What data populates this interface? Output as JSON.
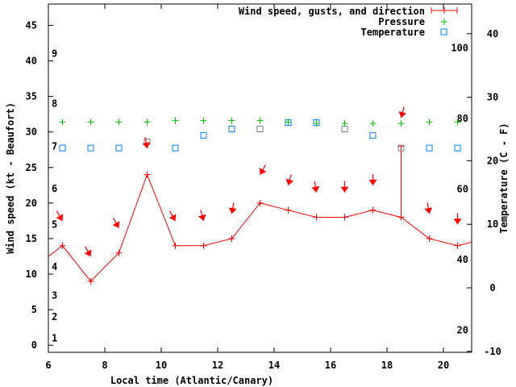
{
  "chart_data": {
    "type": "line",
    "xlabel": "Local time (Atlantic/Canary)",
    "ylabel": "Wind speed (kt - Beaufort)",
    "y2label": "Temperature (C - F)",
    "xlim": [
      6,
      21
    ],
    "ylim": [
      -1,
      48
    ],
    "y2lim": [
      -10,
      45
    ],
    "x_ticks": [
      6,
      8,
      10,
      12,
      14,
      16,
      18,
      20
    ],
    "y_ticks": [
      0,
      5,
      10,
      15,
      20,
      25,
      30,
      35,
      40,
      45
    ],
    "y2_ticks": [
      -10,
      0,
      10,
      20,
      30,
      40
    ],
    "fahrenheit_labels": [
      20,
      40,
      60,
      80,
      100
    ],
    "beaufort_labels": [
      {
        "label": "1",
        "kt": 1
      },
      {
        "label": "2",
        "kt": 4
      },
      {
        "label": "3",
        "kt": 7
      },
      {
        "label": "4",
        "kt": 11
      },
      {
        "label": "5",
        "kt": 17
      },
      {
        "label": "6",
        "kt": 22
      },
      {
        "label": "7",
        "kt": 28
      },
      {
        "label": "8",
        "kt": 34
      },
      {
        "label": "9",
        "kt": 41
      }
    ],
    "legend": {
      "placement": "top-right",
      "entries": [
        "Wind speed, gusts, and direction",
        "Pressure",
        "Temperature"
      ]
    },
    "colors": {
      "wind": "#ff0000",
      "pressure": "#00c000",
      "temperature": "#0080ff",
      "overlap": "#808080"
    },
    "x": [
      6.5,
      7.5,
      8.5,
      9.5,
      10.5,
      11.5,
      12.5,
      13.5,
      14.5,
      15.5,
      16.5,
      17.5,
      18.5,
      19.5,
      20.5
    ],
    "series": [
      {
        "name": "Wind speed",
        "axis": "kt",
        "values": [
          14,
          9,
          13,
          24,
          14,
          14,
          15,
          20,
          19,
          18,
          18,
          19,
          18,
          15,
          14
        ],
        "edge_values": {
          "start": 12.5,
          "end": 14.5
        }
      },
      {
        "name": "Gusts",
        "axis": "kt",
        "values": [
          null,
          null,
          null,
          null,
          null,
          null,
          null,
          null,
          null,
          null,
          null,
          null,
          28,
          null,
          null
        ]
      },
      {
        "name": "Wind direction (deg from)",
        "axis": "kt",
        "arrow_levels": [
          17.5,
          12.5,
          16.5,
          27.7,
          17.5,
          17.5,
          18.5,
          24,
          22.5,
          21.5,
          21.5,
          22.5,
          32,
          18.5,
          17
        ],
        "values": [
          330,
          330,
          330,
          350,
          330,
          345,
          10,
          30,
          15,
          350,
          0,
          0,
          15,
          350,
          0
        ]
      },
      {
        "name": "Pressure (plotted, kt-axis units)",
        "axis": "kt",
        "values": [
          31.4,
          31.4,
          31.4,
          31.4,
          31.6,
          31.6,
          31.6,
          31.6,
          31.4,
          31.2,
          31.2,
          31.2,
          31.2,
          31.4,
          31.4
        ]
      },
      {
        "name": "Temperature",
        "axis": "C",
        "values": [
          22,
          22,
          22,
          23,
          22,
          24,
          25,
          25,
          26,
          26,
          25,
          24,
          22,
          22,
          22
        ],
        "overlap": [
          false,
          false,
          false,
          true,
          false,
          false,
          false,
          true,
          false,
          false,
          true,
          false,
          true,
          false,
          false
        ]
      }
    ]
  }
}
